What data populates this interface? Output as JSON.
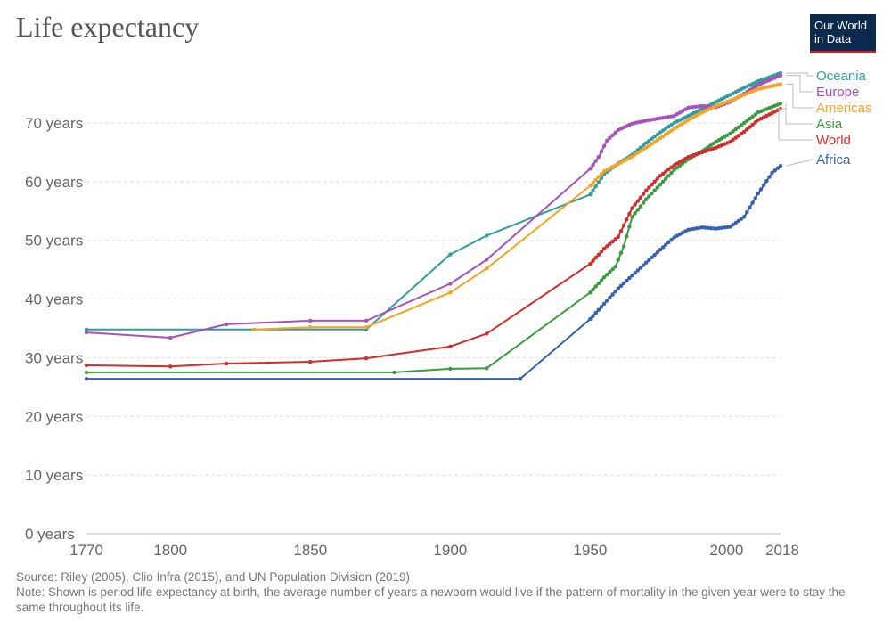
{
  "header": {
    "title": "Life expectancy",
    "logo_text": "Our World in Data"
  },
  "footer": {
    "source": "Source: Riley (2005), Clio Infra (2015), and UN Population Division (2019)",
    "note": "Note: Shown is period life expectancy at birth, the average number of years a newborn would live if the pattern of mortality in the given year were to stay the same throughout its life."
  },
  "chart_data": {
    "type": "line",
    "title": "Life expectancy",
    "xlabel": "",
    "ylabel": "",
    "xlim": [
      1770,
      2018
    ],
    "ylim": [
      0,
      80
    ],
    "grid": "horizontal dashed",
    "legend": "right (inline labels)",
    "x_ticks": [
      "1770",
      "1800",
      "1850",
      "1900",
      "1950",
      "2000",
      "2018"
    ],
    "y_ticks": [
      "0 years",
      "10 years",
      "20 years",
      "30 years",
      "40 years",
      "50 years",
      "60 years",
      "70 years"
    ],
    "series": [
      {
        "name": "Oceania",
        "color": "#2f9c9f",
        "points": [
          [
            1770,
            34.8
          ],
          [
            1870,
            34.8
          ],
          [
            1900,
            47.6
          ],
          [
            1913,
            50.8
          ],
          [
            1950,
            57.8
          ],
          [
            1955,
            61.3
          ],
          [
            1960,
            63.1
          ],
          [
            1965,
            64.6
          ],
          [
            1970,
            66.6
          ],
          [
            1975,
            68.4
          ],
          [
            1980,
            70.0
          ],
          [
            1985,
            71.2
          ],
          [
            1990,
            72.4
          ],
          [
            1995,
            73.6
          ],
          [
            2000,
            74.8
          ],
          [
            2005,
            76.0
          ],
          [
            2010,
            77.1
          ],
          [
            2018,
            78.5
          ]
        ]
      },
      {
        "name": "Europe",
        "color": "#a652ba",
        "points": [
          [
            1770,
            34.3
          ],
          [
            1800,
            33.4
          ],
          [
            1820,
            35.7
          ],
          [
            1850,
            36.3
          ],
          [
            1870,
            36.3
          ],
          [
            1900,
            42.6
          ],
          [
            1913,
            46.7
          ],
          [
            1950,
            62.2
          ],
          [
            1953,
            64.2
          ],
          [
            1956,
            67.0
          ],
          [
            1960,
            68.8
          ],
          [
            1965,
            69.9
          ],
          [
            1970,
            70.4
          ],
          [
            1975,
            70.8
          ],
          [
            1980,
            71.2
          ],
          [
            1985,
            72.6
          ],
          [
            1990,
            72.9
          ],
          [
            1995,
            72.7
          ],
          [
            2000,
            73.6
          ],
          [
            2005,
            75.0
          ],
          [
            2010,
            76.5
          ],
          [
            2018,
            78.1
          ]
        ]
      },
      {
        "name": "Americas",
        "color": "#f6a324",
        "points": [
          [
            1830,
            34.8
          ],
          [
            1850,
            35.2
          ],
          [
            1870,
            35.2
          ],
          [
            1900,
            41.1
          ],
          [
            1913,
            45.2
          ],
          [
            1950,
            59.3
          ],
          [
            1955,
            61.8
          ],
          [
            1960,
            63.0
          ],
          [
            1965,
            64.3
          ],
          [
            1970,
            65.8
          ],
          [
            1975,
            67.4
          ],
          [
            1980,
            69.0
          ],
          [
            1985,
            70.5
          ],
          [
            1990,
            71.8
          ],
          [
            1995,
            72.9
          ],
          [
            2000,
            73.8
          ],
          [
            2005,
            74.8
          ],
          [
            2010,
            75.8
          ],
          [
            2018,
            76.6
          ]
        ]
      },
      {
        "name": "Asia",
        "color": "#3a9a3e",
        "points": [
          [
            1770,
            27.5
          ],
          [
            1880,
            27.5
          ],
          [
            1900,
            28.1
          ],
          [
            1913,
            28.2
          ],
          [
            1950,
            41.1
          ],
          [
            1955,
            43.7
          ],
          [
            1959,
            45.5
          ],
          [
            1962,
            49.0
          ],
          [
            1965,
            54.0
          ],
          [
            1970,
            57.0
          ],
          [
            1975,
            59.5
          ],
          [
            1980,
            62.0
          ],
          [
            1985,
            63.8
          ],
          [
            1990,
            65.2
          ],
          [
            1995,
            66.8
          ],
          [
            2000,
            68.2
          ],
          [
            2005,
            70.0
          ],
          [
            2010,
            71.8
          ],
          [
            2018,
            73.3
          ]
        ]
      },
      {
        "name": "World",
        "color": "#d42b2b",
        "points": [
          [
            1770,
            28.7
          ],
          [
            1800,
            28.5
          ],
          [
            1820,
            29.0
          ],
          [
            1850,
            29.3
          ],
          [
            1870,
            29.9
          ],
          [
            1900,
            31.9
          ],
          [
            1913,
            34.1
          ],
          [
            1950,
            46.0
          ],
          [
            1955,
            48.6
          ],
          [
            1960,
            50.6
          ],
          [
            1965,
            55.5
          ],
          [
            1970,
            58.5
          ],
          [
            1975,
            61.0
          ],
          [
            1980,
            62.8
          ],
          [
            1985,
            64.2
          ],
          [
            1990,
            65.0
          ],
          [
            1995,
            65.8
          ],
          [
            2000,
            66.8
          ],
          [
            2005,
            68.5
          ],
          [
            2010,
            70.5
          ],
          [
            2018,
            72.4
          ]
        ]
      },
      {
        "name": "Africa",
        "color": "#3660b0",
        "points": [
          [
            1770,
            26.4
          ],
          [
            1925,
            26.4
          ],
          [
            1950,
            36.6
          ],
          [
            1955,
            39.2
          ],
          [
            1960,
            41.8
          ],
          [
            1965,
            44.0
          ],
          [
            1970,
            46.2
          ],
          [
            1975,
            48.4
          ],
          [
            1980,
            50.5
          ],
          [
            1985,
            51.8
          ],
          [
            1990,
            52.2
          ],
          [
            1995,
            52.0
          ],
          [
            2000,
            52.3
          ],
          [
            2005,
            54.0
          ],
          [
            2010,
            58.0
          ],
          [
            2015,
            61.5
          ],
          [
            2018,
            62.7
          ]
        ]
      }
    ]
  }
}
